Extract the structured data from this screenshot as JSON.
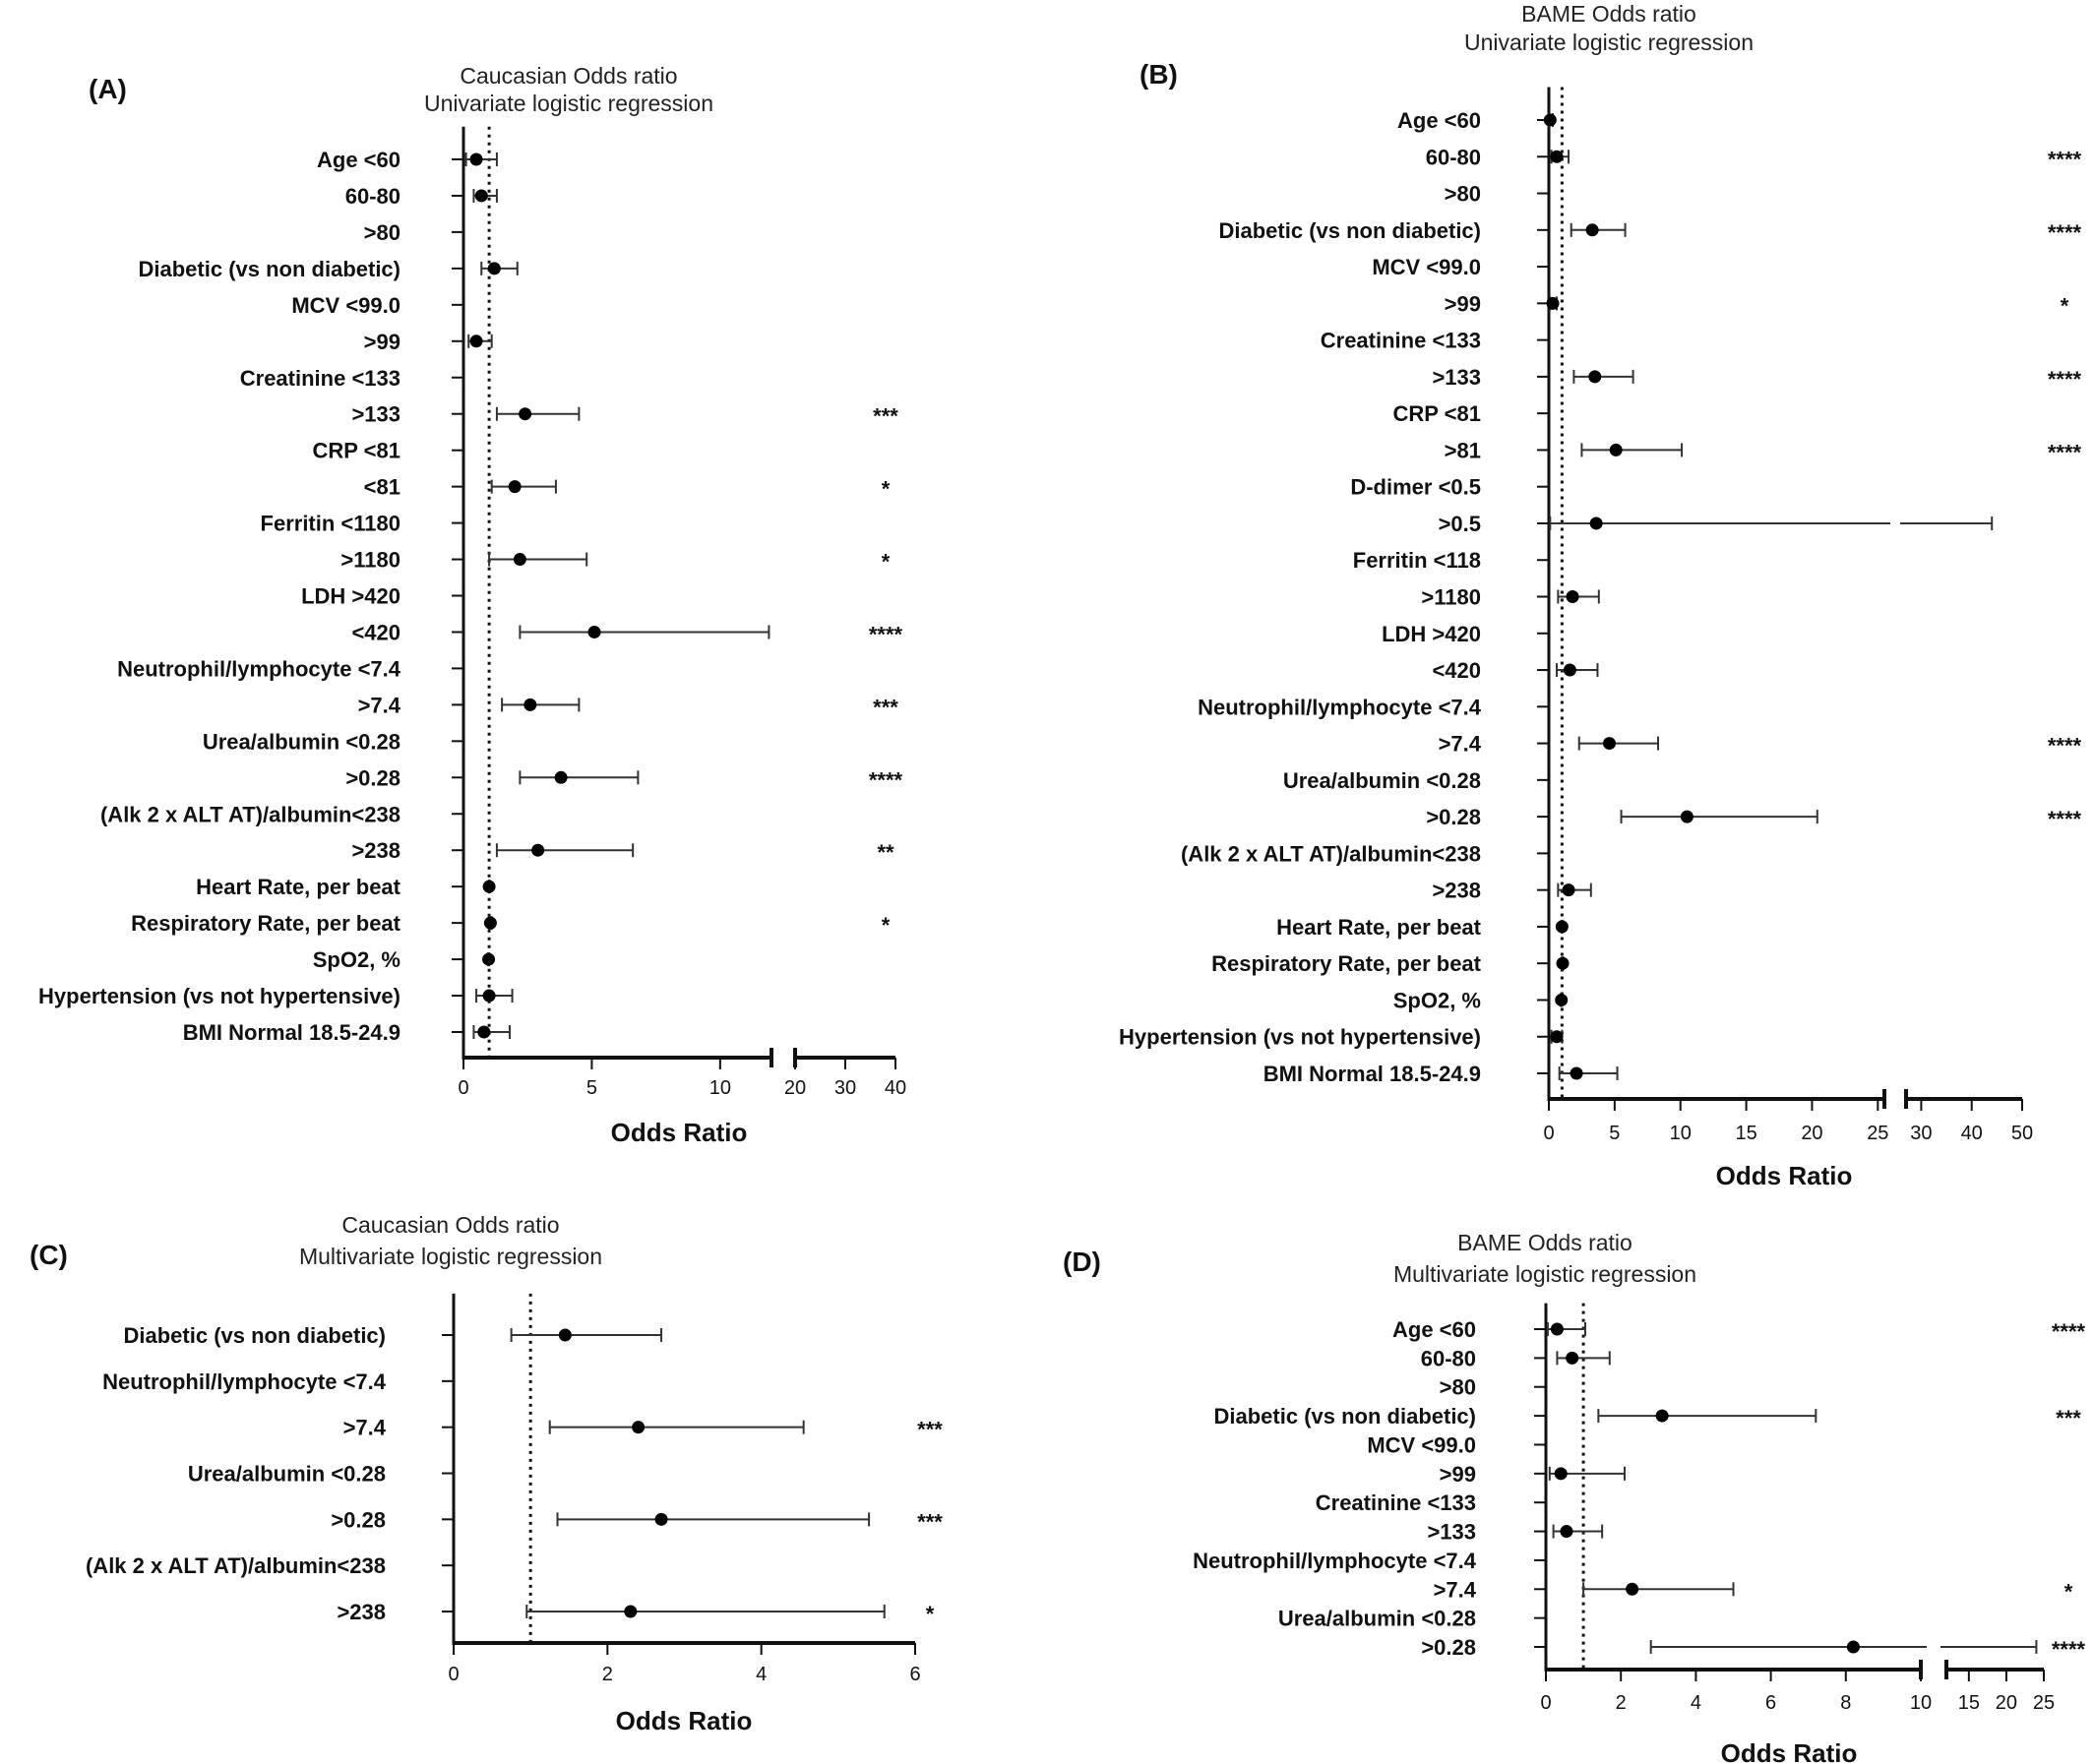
{
  "chart_data": [
    {
      "type": "forest",
      "panel": "(A)",
      "title": "Caucasian Odds ratio",
      "subtitle": "Univariate logistic regression",
      "xlabel": "Odds Ratio",
      "ref_line": 1,
      "axis_segments": [
        {
          "min": 0,
          "max": 12,
          "ticks": [
            0,
            5,
            10
          ],
          "tick_labels": [
            "0",
            "5",
            "10"
          ]
        },
        {
          "min": 20,
          "max": 40,
          "ticks": [
            20,
            30,
            40
          ],
          "tick_labels": [
            "20",
            "30",
            "40"
          ]
        }
      ],
      "rows": [
        {
          "label": "Age <60",
          "or": 0.5,
          "lo": 0.1,
          "hi": 1.3,
          "sig": ""
        },
        {
          "label": "60-80",
          "or": 0.7,
          "lo": 0.4,
          "hi": 1.3,
          "sig": ""
        },
        {
          "label": ">80",
          "or": null,
          "lo": null,
          "hi": null,
          "sig": ""
        },
        {
          "label": "Diabetic (vs non diabetic)",
          "or": 1.2,
          "lo": 0.7,
          "hi": 2.1,
          "sig": ""
        },
        {
          "label": "MCV <99.0",
          "or": null,
          "lo": null,
          "hi": null,
          "sig": ""
        },
        {
          "label": ">99",
          "or": 0.5,
          "lo": 0.2,
          "hi": 1.1,
          "sig": ""
        },
        {
          "label": "Creatinine <133",
          "or": null,
          "lo": null,
          "hi": null,
          "sig": ""
        },
        {
          "label": ">133",
          "or": 2.4,
          "lo": 1.3,
          "hi": 4.5,
          "sig": "***"
        },
        {
          "label": "CRP <81",
          "or": null,
          "lo": null,
          "hi": null,
          "sig": ""
        },
        {
          "label": "<81",
          "or": 2.0,
          "lo": 1.1,
          "hi": 3.6,
          "sig": "*"
        },
        {
          "label": "Ferritin <1180",
          "or": null,
          "lo": null,
          "hi": null,
          "sig": ""
        },
        {
          "label": ">1180",
          "or": 2.2,
          "lo": 1.0,
          "hi": 4.8,
          "sig": "*"
        },
        {
          "label": "LDH >420",
          "or": null,
          "lo": null,
          "hi": null,
          "sig": ""
        },
        {
          "label": "<420",
          "or": 5.1,
          "lo": 2.2,
          "hi": 11.9,
          "sig": "****"
        },
        {
          "label": "Neutrophil/lymphocyte <7.4",
          "or": null,
          "lo": null,
          "hi": null,
          "sig": ""
        },
        {
          "label": ">7.4",
          "or": 2.6,
          "lo": 1.5,
          "hi": 4.5,
          "sig": "***"
        },
        {
          "label": "Urea/albumin <0.28",
          "or": null,
          "lo": null,
          "hi": null,
          "sig": ""
        },
        {
          "label": ">0.28",
          "or": 3.8,
          "lo": 2.2,
          "hi": 6.8,
          "sig": "****"
        },
        {
          "label": "(Alk 2 x ALT AT)/albumin<238",
          "or": null,
          "lo": null,
          "hi": null,
          "sig": ""
        },
        {
          "label": ">238",
          "or": 2.9,
          "lo": 1.3,
          "hi": 6.6,
          "sig": "**"
        },
        {
          "label": "Heart Rate, per beat",
          "or": 1.0,
          "lo": 0.99,
          "hi": 1.02,
          "sig": ""
        },
        {
          "label": "Respiratory Rate, per beat",
          "or": 1.05,
          "lo": 1.0,
          "hi": 1.1,
          "sig": "*"
        },
        {
          "label": "SpO2, %",
          "or": 0.98,
          "lo": 0.95,
          "hi": 1.0,
          "sig": ""
        },
        {
          "label": "Hypertension (vs not hypertensive)",
          "or": 1.0,
          "lo": 0.5,
          "hi": 1.9,
          "sig": ""
        },
        {
          "label": "BMI Normal 18.5-24.9",
          "or": 0.8,
          "lo": 0.4,
          "hi": 1.8,
          "sig": ""
        }
      ]
    },
    {
      "type": "forest",
      "panel": "(B)",
      "title": "BAME Odds ratio",
      "subtitle": "Univariate logistic regression",
      "xlabel": "Odds Ratio",
      "ref_line": 1,
      "axis_segments": [
        {
          "min": 0,
          "max": 25.5,
          "ticks": [
            0,
            5,
            10,
            15,
            20,
            25
          ],
          "tick_labels": [
            "0",
            "5",
            "10",
            "15",
            "20",
            "25"
          ]
        },
        {
          "min": 27,
          "max": 50,
          "ticks": [
            30,
            40,
            50
          ],
          "tick_labels": [
            "30",
            "40",
            "50"
          ]
        }
      ],
      "rows": [
        {
          "label": "Age <60",
          "or": 0.1,
          "lo": 0.0,
          "hi": 0.3,
          "sig": ""
        },
        {
          "label": "60-80",
          "or": 0.6,
          "lo": 0.2,
          "hi": 1.5,
          "sig": "****"
        },
        {
          "label": ">80",
          "or": null,
          "lo": null,
          "hi": null,
          "sig": ""
        },
        {
          "label": "Diabetic (vs non diabetic)",
          "or": 3.3,
          "lo": 1.7,
          "hi": 5.8,
          "sig": "****"
        },
        {
          "label": "MCV <99.0",
          "or": null,
          "lo": null,
          "hi": null,
          "sig": ""
        },
        {
          "label": ">99",
          "or": 0.3,
          "lo": 0.1,
          "hi": 0.6,
          "sig": "*"
        },
        {
          "label": "Creatinine <133",
          "or": null,
          "lo": null,
          "hi": null,
          "sig": ""
        },
        {
          "label": ">133",
          "or": 3.5,
          "lo": 1.9,
          "hi": 6.4,
          "sig": "****"
        },
        {
          "label": "CRP <81",
          "or": null,
          "lo": null,
          "hi": null,
          "sig": ""
        },
        {
          "label": ">81",
          "or": 5.1,
          "lo": 2.5,
          "hi": 10.1,
          "sig": "****"
        },
        {
          "label": "D-dimer <0.5",
          "or": null,
          "lo": null,
          "hi": null,
          "sig": ""
        },
        {
          "label": ">0.5",
          "or": 3.6,
          "lo": 0.1,
          "hi": 44,
          "sig": ""
        },
        {
          "label": "Ferritin <118",
          "or": null,
          "lo": null,
          "hi": null,
          "sig": ""
        },
        {
          "label": ">1180",
          "or": 1.8,
          "lo": 0.7,
          "hi": 3.8,
          "sig": ""
        },
        {
          "label": "LDH >420",
          "or": null,
          "lo": null,
          "hi": null,
          "sig": ""
        },
        {
          "label": "<420",
          "or": 1.6,
          "lo": 0.6,
          "hi": 3.7,
          "sig": ""
        },
        {
          "label": "Neutrophil/lymphocyte <7.4",
          "or": null,
          "lo": null,
          "hi": null,
          "sig": ""
        },
        {
          "label": ">7.4",
          "or": 4.6,
          "lo": 2.3,
          "hi": 8.3,
          "sig": "****"
        },
        {
          "label": "Urea/albumin <0.28",
          "or": null,
          "lo": null,
          "hi": null,
          "sig": ""
        },
        {
          "label": ">0.28",
          "or": 10.5,
          "lo": 5.5,
          "hi": 20.4,
          "sig": "****"
        },
        {
          "label": "(Alk 2 x ALT AT)/albumin<238",
          "or": null,
          "lo": null,
          "hi": null,
          "sig": ""
        },
        {
          "label": ">238",
          "or": 1.5,
          "lo": 0.7,
          "hi": 3.2,
          "sig": ""
        },
        {
          "label": "Heart Rate, per beat",
          "or": 1.0,
          "lo": 0.98,
          "hi": 1.02,
          "sig": ""
        },
        {
          "label": "Respiratory Rate, per beat",
          "or": 1.05,
          "lo": 1.0,
          "hi": 1.1,
          "sig": ""
        },
        {
          "label": "SpO2, %",
          "or": 0.95,
          "lo": 0.9,
          "hi": 1.0,
          "sig": ""
        },
        {
          "label": "Hypertension (vs not hypertensive)",
          "or": 0.6,
          "lo": 0.2,
          "hi": 1.0,
          "sig": ""
        },
        {
          "label": "BMI Normal 18.5-24.9",
          "or": 2.1,
          "lo": 0.8,
          "hi": 5.2,
          "sig": ""
        }
      ]
    },
    {
      "type": "forest",
      "panel": "(C)",
      "title": "Caucasian Odds ratio",
      "subtitle": "Multivariate logistic regression",
      "xlabel": "Odds Ratio",
      "ref_line": 1,
      "axis_segments": [
        {
          "min": 0,
          "max": 6,
          "ticks": [
            0,
            2,
            4,
            6
          ],
          "tick_labels": [
            "0",
            "2",
            "4",
            "6"
          ]
        }
      ],
      "rows": [
        {
          "label": "Diabetic (vs non diabetic)",
          "or": 1.45,
          "lo": 0.75,
          "hi": 2.7,
          "sig": ""
        },
        {
          "label": "Neutrophil/lymphocyte <7.4",
          "or": null,
          "lo": null,
          "hi": null,
          "sig": ""
        },
        {
          "label": ">7.4",
          "or": 2.4,
          "lo": 1.25,
          "hi": 4.55,
          "sig": "***"
        },
        {
          "label": "Urea/albumin <0.28",
          "or": null,
          "lo": null,
          "hi": null,
          "sig": ""
        },
        {
          "label": ">0.28",
          "or": 2.7,
          "lo": 1.35,
          "hi": 5.4,
          "sig": "***"
        },
        {
          "label": "(Alk 2 x ALT AT)/albumin<238",
          "or": null,
          "lo": null,
          "hi": null,
          "sig": ""
        },
        {
          "label": ">238",
          "or": 2.3,
          "lo": 0.95,
          "hi": 5.6,
          "sig": "*"
        }
      ]
    },
    {
      "type": "forest",
      "panel": "(D)",
      "title": "BAME Odds ratio",
      "subtitle": "Multivariate logistic regression",
      "xlabel": "Odds Ratio",
      "ref_line": 1,
      "axis_segments": [
        {
          "min": 0,
          "max": 10,
          "ticks": [
            0,
            2,
            4,
            6,
            8,
            10
          ],
          "tick_labels": [
            "0",
            "2",
            "4",
            "6",
            "8",
            "10"
          ]
        },
        {
          "min": 12,
          "max": 25,
          "ticks": [
            15,
            20,
            25
          ],
          "tick_labels": [
            "15",
            "20",
            "25"
          ]
        }
      ],
      "rows": [
        {
          "label": "Age <60",
          "or": 0.3,
          "lo": 0.05,
          "hi": 1.05,
          "sig": "****"
        },
        {
          "label": "60-80",
          "or": 0.7,
          "lo": 0.3,
          "hi": 1.7,
          "sig": ""
        },
        {
          "label": ">80",
          "or": null,
          "lo": null,
          "hi": null,
          "sig": ""
        },
        {
          "label": "Diabetic (vs non diabetic)",
          "or": 3.1,
          "lo": 1.4,
          "hi": 7.2,
          "sig": "***"
        },
        {
          "label": "MCV <99.0",
          "or": null,
          "lo": null,
          "hi": null,
          "sig": ""
        },
        {
          "label": ">99",
          "or": 0.4,
          "lo": 0.1,
          "hi": 2.1,
          "sig": ""
        },
        {
          "label": "Creatinine <133",
          "or": null,
          "lo": null,
          "hi": null,
          "sig": ""
        },
        {
          "label": ">133",
          "or": 0.55,
          "lo": 0.2,
          "hi": 1.5,
          "sig": ""
        },
        {
          "label": "Neutrophil/lymphocyte <7.4",
          "or": null,
          "lo": null,
          "hi": null,
          "sig": ""
        },
        {
          "label": ">7.4",
          "or": 2.3,
          "lo": 1.0,
          "hi": 5.0,
          "sig": "*"
        },
        {
          "label": "Urea/albumin <0.28",
          "or": null,
          "lo": null,
          "hi": null,
          "sig": ""
        },
        {
          "label": ">0.28",
          "or": 8.2,
          "lo": 2.8,
          "hi": 24,
          "sig": "****"
        }
      ]
    }
  ]
}
